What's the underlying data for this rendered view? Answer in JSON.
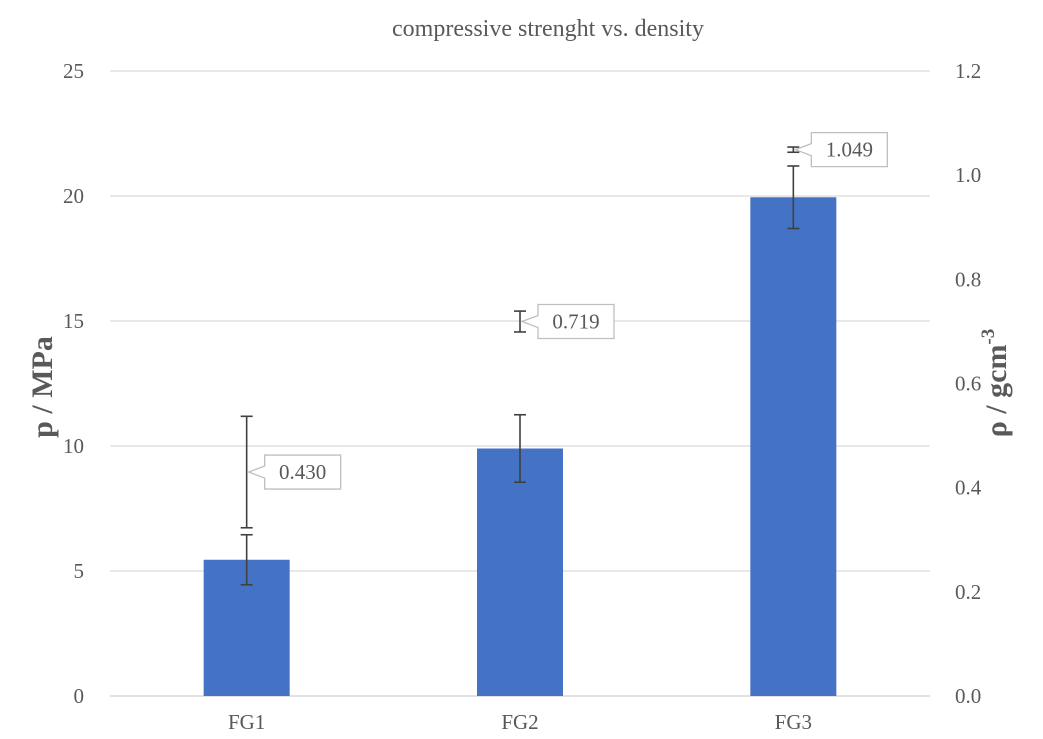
{
  "chart_data": {
    "type": "bar",
    "title": "compressive strenght vs. density",
    "categories": [
      "FG1",
      "FG2",
      "FG3"
    ],
    "primary_axis": {
      "label": "p / MPa",
      "ylim": [
        0,
        25
      ],
      "ticks": [
        "0",
        "5",
        "10",
        "15",
        "20",
        "25"
      ]
    },
    "secondary_axis": {
      "label_main": "ρ / gcm",
      "label_sup": "-3",
      "ylim": [
        0,
        1.2
      ],
      "ticks": [
        "0.0",
        "0.2",
        "0.4",
        "0.6",
        "0.8",
        "1.0",
        "1.2"
      ]
    },
    "series": [
      {
        "type": "bar",
        "axis": "primary",
        "values": [
          5.45,
          9.9,
          19.95
        ],
        "error": [
          1.0,
          1.35,
          1.25
        ],
        "color": "#4472C4"
      },
      {
        "type": "point",
        "axis": "secondary",
        "values": [
          0.43,
          0.719,
          1.049
        ],
        "error": [
          0.107,
          0.02,
          0.005
        ],
        "labels": [
          "0.430",
          "0.719",
          "1.049"
        ]
      }
    ],
    "grid": true,
    "legend": "none"
  }
}
